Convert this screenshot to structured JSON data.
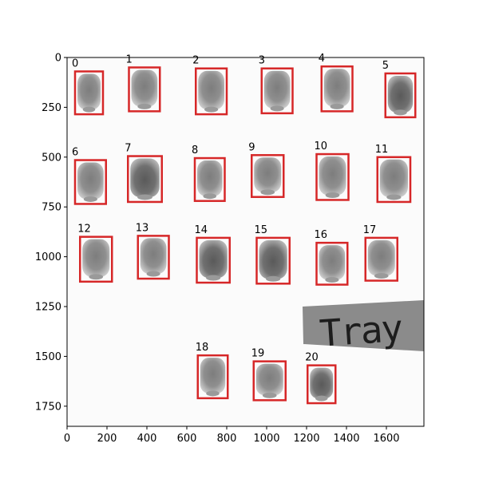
{
  "image": {
    "x_ticks": [
      "0",
      "200",
      "400",
      "600",
      "800",
      "1000",
      "1200",
      "1400",
      "1600"
    ],
    "y_ticks": [
      "0",
      "250",
      "500",
      "750",
      "1000",
      "1250",
      "1500",
      "1750"
    ],
    "tray_text": "Tray",
    "box_color": "#d62728",
    "boxes": [
      {
        "label": "0",
        "x": [
          40,
          180
        ],
        "y": [
          70,
          285
        ]
      },
      {
        "label": "1",
        "x": [
          310,
          465
        ],
        "y": [
          50,
          270
        ]
      },
      {
        "label": "2",
        "x": [
          645,
          800
        ],
        "y": [
          55,
          285
        ]
      },
      {
        "label": "3",
        "x": [
          975,
          1130
        ],
        "y": [
          55,
          280
        ]
      },
      {
        "label": "4",
        "x": [
          1275,
          1430
        ],
        "y": [
          45,
          270
        ]
      },
      {
        "label": "5",
        "x": [
          1595,
          1745
        ],
        "y": [
          80,
          300
        ]
      },
      {
        "label": "6",
        "x": [
          40,
          195
        ],
        "y": [
          515,
          735
        ]
      },
      {
        "label": "7",
        "x": [
          305,
          475
        ],
        "y": [
          495,
          725
        ]
      },
      {
        "label": "8",
        "x": [
          640,
          790
        ],
        "y": [
          505,
          720
        ]
      },
      {
        "label": "9",
        "x": [
          925,
          1085
        ],
        "y": [
          490,
          700
        ]
      },
      {
        "label": "10",
        "x": [
          1250,
          1410
        ],
        "y": [
          485,
          715
        ]
      },
      {
        "label": "11",
        "x": [
          1555,
          1720
        ],
        "y": [
          500,
          725
        ]
      },
      {
        "label": "12",
        "x": [
          65,
          225
        ],
        "y": [
          900,
          1125
        ]
      },
      {
        "label": "13",
        "x": [
          355,
          510
        ],
        "y": [
          895,
          1110
        ]
      },
      {
        "label": "14",
        "x": [
          650,
          815
        ],
        "y": [
          905,
          1130
        ]
      },
      {
        "label": "15",
        "x": [
          950,
          1115
        ],
        "y": [
          905,
          1135
        ]
      },
      {
        "label": "16",
        "x": [
          1250,
          1405
        ],
        "y": [
          930,
          1140
        ]
      },
      {
        "label": "17",
        "x": [
          1495,
          1655
        ],
        "y": [
          905,
          1120
        ]
      },
      {
        "label": "18",
        "x": [
          655,
          805
        ],
        "y": [
          1495,
          1710
        ]
      },
      {
        "label": "19",
        "x": [
          935,
          1095
        ],
        "y": [
          1525,
          1720
        ]
      },
      {
        "label": "20",
        "x": [
          1205,
          1345
        ],
        "y": [
          1545,
          1735
        ]
      }
    ]
  }
}
